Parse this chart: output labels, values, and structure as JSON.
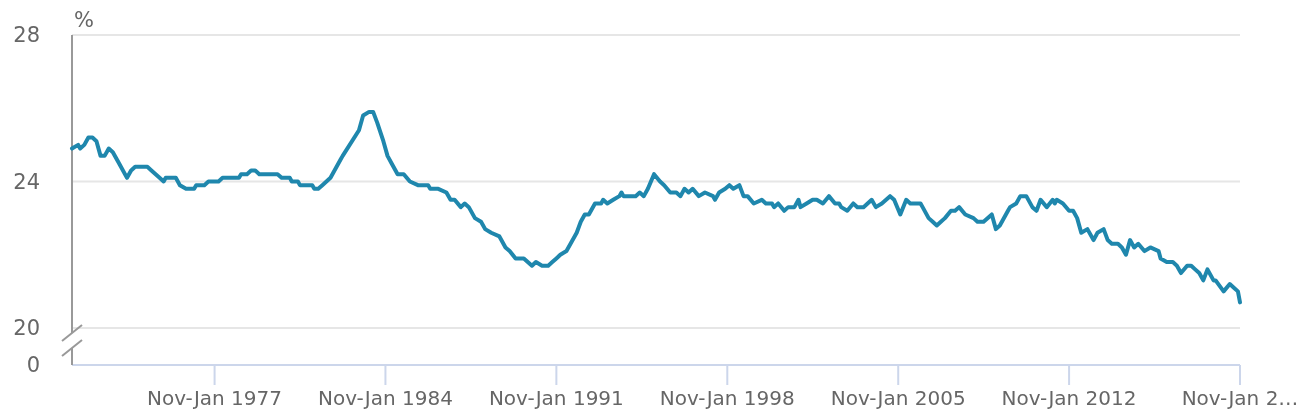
{
  "chart_data": {
    "type": "line",
    "ylabel": "%",
    "annotations": [
      "0"
    ],
    "x": [
      "1971-03",
      "1971-06",
      "1971-07",
      "1971-09",
      "1971-11",
      "1972-01",
      "1972-03",
      "1972-05",
      "1972-07",
      "1972-09",
      "1972-11",
      "1973-02",
      "1973-06",
      "1973-08",
      "1973-10",
      "1974-04",
      "1974-06",
      "1974-10",
      "1974-12",
      "1975-01",
      "1975-06",
      "1975-08",
      "1975-11",
      "1976-03",
      "1976-04",
      "1976-08",
      "1976-10",
      "1977-03",
      "1977-05",
      "1978-01",
      "1978-02",
      "1978-05",
      "1978-07",
      "1978-09",
      "1978-11",
      "1979-08",
      "1979-10",
      "1980-02",
      "1980-03",
      "1980-06",
      "1980-07",
      "1981-01",
      "1981-02",
      "1981-04",
      "1981-06",
      "1981-10",
      "1982-03",
      "1982-04",
      "1982-12",
      "1983-02",
      "1983-05",
      "1983-07",
      "1983-09",
      "1983-12",
      "1984-02",
      "1984-04",
      "1984-07",
      "1984-10",
      "1985-01",
      "1985-05",
      "1985-10",
      "1985-11",
      "1986-03",
      "1986-07",
      "1986-09",
      "1986-11",
      "1987-02",
      "1987-04",
      "1987-06",
      "1987-09",
      "1987-12",
      "1988-02",
      "1988-05",
      "1988-09",
      "1988-12",
      "1989-02",
      "1989-05",
      "1989-09",
      "1990-01",
      "1990-03",
      "1990-06",
      "1990-09",
      "1990-11",
      "1991-01",
      "1991-03",
      "1991-06",
      "1991-08",
      "1991-11",
      "1992-01",
      "1992-03",
      "1992-05",
      "1992-08",
      "1992-11",
      "1992-12",
      "1993-02",
      "1993-05",
      "1993-08",
      "1993-09",
      "1993-10",
      "1994-04",
      "1994-06",
      "1994-08",
      "1994-10",
      "1995-01",
      "1995-04",
      "1995-06",
      "1995-09",
      "1995-12",
      "1996-02",
      "1996-04",
      "1996-06",
      "1996-08",
      "1996-11",
      "1997-02",
      "1997-06",
      "1997-07",
      "1997-09",
      "1997-12",
      "1998-02",
      "1998-04",
      "1998-07",
      "1998-09",
      "1998-11",
      "1999-02",
      "1999-06",
      "1999-08",
      "1999-11",
      "1999-12",
      "2000-02",
      "2000-05",
      "2000-07",
      "2000-10",
      "2000-12",
      "2001-01",
      "2001-04",
      "2001-07",
      "2001-09",
      "2001-12",
      "2002-03",
      "2002-06",
      "2002-08",
      "2002-09",
      "2002-12",
      "2003-03",
      "2003-05",
      "2003-08",
      "2003-12",
      "2004-02",
      "2004-05",
      "2004-09",
      "2004-11",
      "2005-02",
      "2005-05",
      "2005-07",
      "2005-09",
      "2005-12",
      "2006-01",
      "2006-04",
      "2006-06",
      "2006-08",
      "2006-10",
      "2006-12",
      "2007-03",
      "2007-05",
      "2007-07",
      "2007-10",
      "2008-02",
      "2008-04",
      "2008-07",
      "2008-11",
      "2009-01",
      "2009-03",
      "2009-07",
      "2009-08",
      "2009-11",
      "2010-01",
      "2010-04",
      "2010-07",
      "2010-09",
      "2010-11",
      "2011-02",
      "2011-05",
      "2011-06",
      "2011-07",
      "2011-10",
      "2012-01",
      "2012-03",
      "2012-05",
      "2012-07",
      "2012-10",
      "2013-01",
      "2013-03",
      "2013-06",
      "2013-08",
      "2013-10",
      "2014-01",
      "2014-03",
      "2014-05",
      "2014-07",
      "2014-09",
      "2014-11",
      "2015-02",
      "2015-05",
      "2015-09",
      "2015-10",
      "2016-01",
      "2016-04",
      "2016-06",
      "2016-08",
      "2016-11",
      "2017-01",
      "2017-03",
      "2017-05",
      "2017-07",
      "2017-09",
      "2017-12",
      "2018-01",
      "2018-05",
      "2018-08",
      "2018-10",
      "2018-12",
      "2019-01"
    ],
    "series": [
      {
        "color": "#1f87ad",
        "values": [
          24.9,
          25.0,
          24.9,
          25.0,
          25.2,
          25.2,
          25.1,
          24.7,
          24.7,
          24.9,
          24.8,
          24.5,
          24.1,
          24.3,
          24.4,
          24.4,
          24.3,
          24.1,
          24.0,
          24.1,
          24.1,
          23.9,
          23.8,
          23.8,
          23.9,
          23.9,
          24.0,
          24.0,
          24.1,
          24.1,
          24.2,
          24.2,
          24.3,
          24.3,
          24.2,
          24.2,
          24.1,
          24.1,
          24.0,
          24.0,
          23.9,
          23.9,
          23.8,
          23.8,
          23.9,
          24.1,
          24.6,
          24.7,
          25.4,
          25.8,
          25.9,
          25.9,
          25.6,
          25.1,
          24.7,
          24.5,
          24.2,
          24.2,
          24.0,
          23.9,
          23.9,
          23.8,
          23.8,
          23.7,
          23.5,
          23.5,
          23.3,
          23.4,
          23.3,
          23.0,
          22.9,
          22.7,
          22.6,
          22.5,
          22.2,
          22.1,
          21.9,
          21.9,
          21.7,
          21.8,
          21.7,
          21.7,
          21.8,
          21.9,
          22.0,
          22.1,
          22.3,
          22.6,
          22.9,
          23.1,
          23.1,
          23.4,
          23.4,
          23.5,
          23.4,
          23.5,
          23.6,
          23.7,
          23.6,
          23.6,
          23.7,
          23.6,
          23.8,
          24.2,
          24.0,
          23.9,
          23.7,
          23.7,
          23.6,
          23.8,
          23.7,
          23.8,
          23.6,
          23.7,
          23.6,
          23.5,
          23.7,
          23.8,
          23.9,
          23.8,
          23.9,
          23.6,
          23.6,
          23.4,
          23.5,
          23.4,
          23.4,
          23.3,
          23.4,
          23.2,
          23.3,
          23.3,
          23.5,
          23.3,
          23.4,
          23.5,
          23.5,
          23.4,
          23.6,
          23.4,
          23.4,
          23.3,
          23.2,
          23.4,
          23.3,
          23.3,
          23.5,
          23.3,
          23.4,
          23.6,
          23.5,
          23.1,
          23.5,
          23.4,
          23.4,
          23.4,
          23.3,
          23.0,
          22.9,
          22.8,
          22.9,
          23.0,
          23.2,
          23.2,
          23.3,
          23.1,
          23.0,
          22.9,
          22.9,
          23.1,
          22.7,
          22.8,
          23.2,
          23.3,
          23.4,
          23.6,
          23.6,
          23.3,
          23.2,
          23.5,
          23.3,
          23.5,
          23.4,
          23.5,
          23.4,
          23.2,
          23.2,
          23.0,
          22.6,
          22.7,
          22.4,
          22.6,
          22.7,
          22.4,
          22.3,
          22.3,
          22.2,
          22.0,
          22.4,
          22.2,
          22.3,
          22.1,
          22.2,
          22.1,
          21.9,
          21.8,
          21.8,
          21.7,
          21.5,
          21.7,
          21.7,
          21.6,
          21.5,
          21.3,
          21.6,
          21.3,
          21.3,
          21.0,
          21.2,
          21.1,
          21.0,
          20.7
        ]
      }
    ],
    "xlim": [
      "1971-03",
      "2019-01"
    ],
    "xticks": [
      {
        "value": "1977-01",
        "label": "Nov-Jan 1977"
      },
      {
        "value": "1984-01",
        "label": "Nov-Jan 1984"
      },
      {
        "value": "1991-01",
        "label": "Nov-Jan 1991"
      },
      {
        "value": "1998-01",
        "label": "Nov-Jan 1998"
      },
      {
        "value": "2005-01",
        "label": "Nov-Jan 2005"
      },
      {
        "value": "2012-01",
        "label": "Nov-Jan 2012"
      },
      {
        "value": "2019-01",
        "label": "Nov-Jan 2…"
      }
    ],
    "ylim": [
      20,
      28
    ],
    "yticks": [
      20,
      24,
      28
    ],
    "grid": "y"
  }
}
